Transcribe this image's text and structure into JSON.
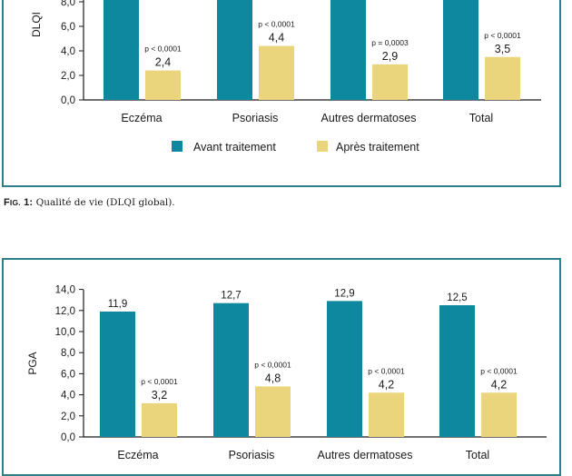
{
  "colors": {
    "before": "#0e889e",
    "after": "#ead57c",
    "frame": "#2e7f87",
    "axis": "#1a1a1a"
  },
  "caption1": {
    "fig_label_f": "F",
    "fig_label_ig": "IG.",
    "fig_label_num": " 1:",
    "text": " Qualité de vie (DLQI global)."
  },
  "chart_data": [
    {
      "type": "bar",
      "title": "Qualité de vie (DLQI global)",
      "ylabel": "DLQI",
      "xlabel": "",
      "categories": [
        "Eczéma",
        "Psoriasis",
        "Autres dermatoses",
        "Total"
      ],
      "yticks": [
        "0,0",
        "2,0",
        "4,0",
        "6,0",
        "8,0"
      ],
      "ylim": [
        0,
        8
      ],
      "series": [
        {
          "name": "Avant traitement",
          "values": [
            null,
            null,
            null,
            null
          ],
          "labels": [
            "",
            "",
            "",
            ""
          ]
        },
        {
          "name": "Après traitement",
          "values": [
            2.4,
            4.4,
            2.9,
            3.5
          ],
          "labels": [
            "2,4",
            "4,4",
            "2,9",
            "3,5"
          ],
          "pvalues": [
            "p < 0,0001",
            "p < 0,0001",
            "p = 0,0003",
            "p < 0,0001"
          ]
        }
      ],
      "legend": {
        "position": "bottom",
        "entries": [
          "Avant traitement",
          "Après traitement"
        ]
      },
      "grid": false
    },
    {
      "type": "bar",
      "title": "",
      "ylabel": "PGA",
      "xlabel": "",
      "categories": [
        "Eczéma",
        "Psoriasis",
        "Autres dermatoses",
        "Total"
      ],
      "yticks": [
        "0,0",
        "2,0",
        "4,0",
        "6,0",
        "8,0",
        "10,0",
        "12,0",
        "14,0"
      ],
      "ylim": [
        0,
        14
      ],
      "series": [
        {
          "name": "Avant traitement",
          "values": [
            11.9,
            12.7,
            12.9,
            12.5
          ],
          "labels": [
            "11,9",
            "12,7",
            "12,9",
            "12,5"
          ]
        },
        {
          "name": "Après traitement",
          "values": [
            3.2,
            4.8,
            4.2,
            4.2
          ],
          "labels": [
            "3,2",
            "4,8",
            "4,2",
            "4,2"
          ],
          "pvalues": [
            "p < 0,0001",
            "p < 0,0001",
            "p < 0,0001",
            "p < 0,0001"
          ]
        }
      ],
      "grid": false
    }
  ]
}
